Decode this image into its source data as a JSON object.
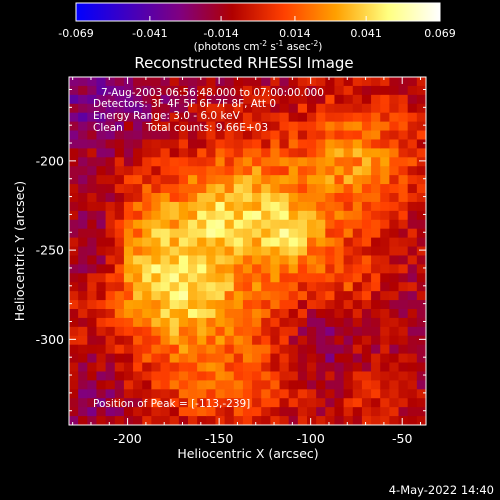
{
  "colorbar": {
    "tick_labels": [
      "-0.069",
      "-0.041",
      "-0.014",
      "0.014",
      "0.041",
      "0.069"
    ],
    "tick_values": [
      -0.069,
      -0.041,
      -0.014,
      0.014,
      0.041,
      0.069
    ],
    "range": [
      -0.069,
      0.069
    ],
    "units_parts": [
      "(photons cm",
      "-2",
      " s",
      "-1",
      " asec",
      "-2",
      ")"
    ],
    "stops": [
      "#0000ff",
      "#4000c0",
      "#800080",
      "#b00000",
      "#ff4000",
      "#ffa000",
      "#ffff80",
      "#ffffff"
    ]
  },
  "chart_data": {
    "type": "heatmap",
    "title": "Reconstructed RHESSI Image",
    "xlabel": "Heliocentric X (arcsec)",
    "ylabel": "Heliocentric Y (arcsec)",
    "xlim": [
      -232,
      -37
    ],
    "ylim": [
      -348,
      -153
    ],
    "x_ticks": [
      -200,
      -150,
      -100,
      -50
    ],
    "x_tick_labels": [
      "-200",
      "-150",
      "-100",
      "-50"
    ],
    "y_ticks": [
      -200,
      -250,
      -300
    ],
    "y_tick_labels": [
      "-200",
      "-250",
      "-300"
    ],
    "annotations": {
      "time_range": "7-Aug-2003 06:56:48.000 to 07:00:00.000",
      "detectors": "Detectors: 3F 4F 5F 6F 7F 8F, Att 0",
      "energy": "Energy Range: 3.0 - 6.0 keV",
      "clean_label": "Clean",
      "total_counts": "Total counts: 9.66E+03",
      "peak": "Position of Peak = [-113,-239]"
    },
    "peak_position": [
      -113,
      -239
    ],
    "blobs": [
      {
        "x": -165,
        "y": -255,
        "amp": 0.04,
        "sx": 45,
        "sy": 42
      },
      {
        "x": -150,
        "y": -232,
        "amp": 0.02,
        "sx": 16,
        "sy": 14
      },
      {
        "x": -113,
        "y": -239,
        "amp": 0.03,
        "sx": 14,
        "sy": 14
      },
      {
        "x": -168,
        "y": -280,
        "amp": 0.018,
        "sx": 18,
        "sy": 16
      },
      {
        "x": -195,
        "y": -255,
        "amp": 0.016,
        "sx": 14,
        "sy": 20
      },
      {
        "x": -130,
        "y": -210,
        "amp": 0.016,
        "sx": 16,
        "sy": 14
      },
      {
        "x": -75,
        "y": -200,
        "amp": 0.036,
        "sx": 24,
        "sy": 24
      },
      {
        "x": -85,
        "y": -265,
        "amp": 0.016,
        "sx": 16,
        "sy": 18
      },
      {
        "x": -150,
        "y": -325,
        "amp": 0.018,
        "sx": 32,
        "sy": 18
      },
      {
        "x": -70,
        "y": -330,
        "amp": 0.01,
        "sx": 14,
        "sy": 12
      },
      {
        "x": -215,
        "y": -245,
        "amp": -0.03,
        "sx": 12,
        "sy": 26
      },
      {
        "x": -215,
        "y": -170,
        "amp": -0.02,
        "sx": 28,
        "sy": 18
      },
      {
        "x": -95,
        "y": -300,
        "amp": -0.02,
        "sx": 12,
        "sy": 18
      },
      {
        "x": -215,
        "y": -330,
        "amp": -0.015,
        "sx": 16,
        "sy": 16
      }
    ],
    "base_level": -0.012,
    "noise_amp": 0.012
  },
  "footer": {
    "timestamp": "4-May-2022 14:40"
  }
}
